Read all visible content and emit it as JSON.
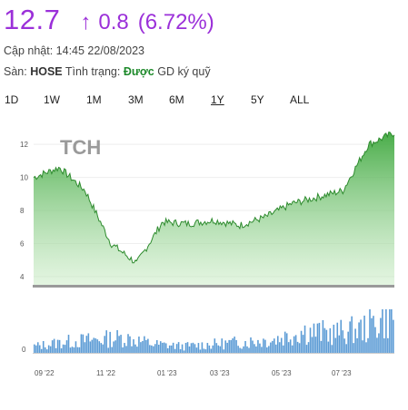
{
  "quote": {
    "price": "12.7",
    "arrow": "↑",
    "change": "0.8",
    "change_pct": "(6.72%)",
    "color": "#9b30d9"
  },
  "updated": "Cập nhật: 14:45 22/08/2023",
  "exchange": {
    "label": "Sàn:",
    "name": "HOSE",
    "status_label": "Tình trạng:",
    "status_value": "Được",
    "status_rest": "GD ký quỹ"
  },
  "ranges": [
    "1D",
    "1W",
    "1M",
    "3M",
    "6M",
    "1Y",
    "5Y",
    "ALL"
  ],
  "active_range": "1Y",
  "chart_data": [
    {
      "type": "area",
      "title": "TCH",
      "color": "#5cb85c",
      "yticks": [
        4,
        6,
        8,
        10,
        12
      ],
      "ylim": [
        3.5,
        13.6
      ],
      "xticks": [
        "09 '22",
        "11 '22",
        "01 '23",
        "03 '23",
        "05 '23",
        "07 '23"
      ],
      "x": [
        "08/2022",
        "09/2022",
        "10/2022",
        "11/2022",
        "11/2022",
        "12/2022",
        "01/2023",
        "02/2023",
        "03/2023",
        "04/2023",
        "05/2023",
        "06/2023",
        "07/2023",
        "08/2023",
        "08/2023"
      ],
      "values": [
        10.0,
        10.6,
        9.2,
        6.0,
        4.8,
        7.3,
        7.2,
        7.4,
        7.1,
        7.6,
        8.4,
        8.8,
        9.2,
        12.0,
        12.7
      ]
    },
    {
      "type": "bar",
      "title": "",
      "color": "#5b9bd5",
      "yticks": [
        0
      ],
      "x": [
        "08/2022",
        "09/2022",
        "10/2022",
        "11/2022",
        "12/2022",
        "01/2023",
        "02/2023",
        "03/2023",
        "04/2023",
        "05/2023",
        "06/2023",
        "07/2023",
        "08/2023"
      ],
      "values": [
        0.15,
        0.25,
        0.3,
        0.35,
        0.2,
        0.15,
        0.2,
        0.25,
        0.3,
        0.5,
        0.45,
        0.55,
        0.9
      ]
    }
  ]
}
